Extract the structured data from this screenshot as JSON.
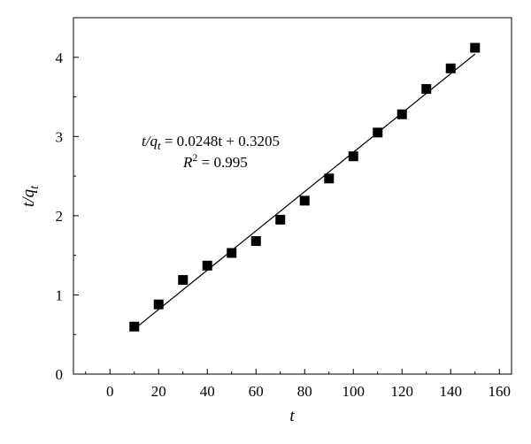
{
  "chart_data": {
    "type": "scatter",
    "xlabel": "t",
    "ylabel": "t/q",
    "ylabel_sub": "t",
    "xlim": [
      -15,
      165
    ],
    "ylim": [
      0,
      4.5
    ],
    "x_ticks": [
      0,
      20,
      40,
      60,
      80,
      100,
      120,
      140,
      160
    ],
    "y_ticks": [
      0,
      1,
      2,
      3,
      4
    ],
    "grid": false,
    "series": [
      {
        "x": [
          10,
          20,
          30,
          40,
          50,
          60,
          70,
          80,
          90,
          100,
          110,
          120,
          130,
          140,
          150
        ],
        "y": [
          0.6,
          0.88,
          1.19,
          1.37,
          1.53,
          1.68,
          1.95,
          2.19,
          2.47,
          2.75,
          3.05,
          3.28,
          3.6,
          3.86,
          4.12
        ],
        "marker": "square",
        "color": "#000000"
      }
    ],
    "fit_line": {
      "slope": 0.0248,
      "intercept": 0.3205,
      "x_range": [
        10,
        150
      ]
    },
    "annotation": {
      "equation_lhs": "t/q",
      "equation_sub": "t",
      "equation_rhs": " = 0.0248t + 0.3205",
      "r2_label": "R",
      "r2_sup": "2",
      "r2_value": " = 0.995"
    }
  }
}
